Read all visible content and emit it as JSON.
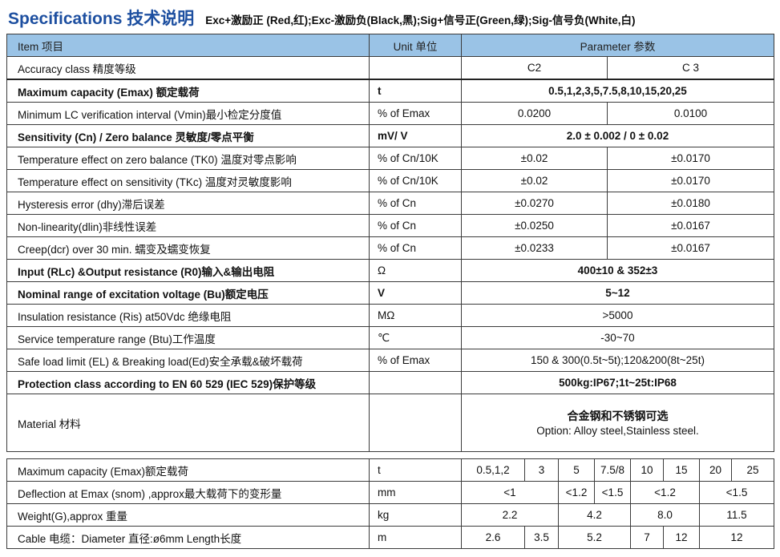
{
  "header": {
    "title": "Specifications 技术说明",
    "wiring_note": "Exc+激励正 (Red,红);Exc-激励负(Black,黑);Sig+信号正(Green,绿);Sig-信号负(White,白)"
  },
  "colors": {
    "accent_blue": "#1d4fa0",
    "table_header_bg": "#9ac3e6",
    "border": "#3b3b3b"
  },
  "spec_table": {
    "headers": {
      "item": "Item 项目",
      "unit": "Unit 单位",
      "parameter": "Parameter 参数"
    },
    "rows": [
      {
        "label": "Accuracy class 精度等级",
        "unit": "",
        "values": [
          "C2",
          "C 3"
        ]
      },
      {
        "label": "Maximum  capacity (Emax) 额定载荷",
        "unit": "t",
        "span": "0.5,1,2,3,5,7.5,8,10,15,20,25",
        "bold": true,
        "thick_top": true
      },
      {
        "label": "Minimum LC verification interval (Vmin)最小检定分度值",
        "unit": "% of Emax",
        "values": [
          "0.0200",
          "0.0100"
        ]
      },
      {
        "label": "Sensitivity (Cn) / Zero balance 灵敏度/零点平衡",
        "unit": "mV/ V",
        "span": "2.0 ± 0.002 / 0 ± 0.02",
        "bold": true
      },
      {
        "label": "Temperature effect on zero balance  (TK0) 温度对零点影响",
        "unit": "% of Cn/10K",
        "values": [
          "±0.02",
          "±0.0170"
        ]
      },
      {
        "label": "Temperature effect on sensitivity (TKc) 温度对灵敏度影响",
        "unit": "% of Cn/10K",
        "values": [
          "±0.02",
          "±0.0170"
        ]
      },
      {
        "label": "Hysteresis error (dhy)滞后误差",
        "unit": "% of Cn",
        "values": [
          "±0.0270",
          "±0.0180"
        ]
      },
      {
        "label": "Non-linearity(dlin)非线性误差",
        "unit": "% of Cn",
        "values": [
          "±0.0250",
          "±0.0167"
        ]
      },
      {
        "label": "Creep(dcr) over 30 min. 蠕变及蠕变恢复",
        "unit": "% of Cn",
        "values": [
          "±0.0233",
          "±0.0167"
        ]
      },
      {
        "label": "Input  (RLc) &Output resistance (R0)输入&输出电阻",
        "unit": "Ω",
        "span": "400±10 & 352±3",
        "bold": true,
        "unit_bold": false
      },
      {
        "label": "Nominal range of excitation voltage  (Bu)额定电压",
        "unit": "V",
        "span": "5~12",
        "bold": true
      },
      {
        "label": "Insulation  resistance (Ris) at50Vdc 绝缘电阻",
        "unit": "MΩ",
        "span": ">5000",
        "unit_bold": false
      },
      {
        "label": "Service temperature range  (Btu)工作温度",
        "unit": "℃",
        "span": "-30~70"
      },
      {
        "label": "Safe load limit (EL) & Breaking load(Ed)安全承载&破坏载荷",
        "unit": "% of Emax",
        "span": "150 & 300(0.5t~5t);120&200(8t~25t)"
      },
      {
        "label": "Protection class according to EN 60 529  (IEC 529)保护等级",
        "unit": "",
        "span": "500kg:IP67;1t~25t:IP68",
        "bold": true
      },
      {
        "label": "Material 材料",
        "unit": "",
        "span_lines": [
          "合金钢和不锈钢可选",
          "Option: Alloy steel,Stainless steel."
        ],
        "tall": true
      }
    ]
  },
  "capacity_table": {
    "rows": [
      {
        "label": "Maximum  capacity (Emax)额定载荷",
        "unit": "t",
        "cells": [
          {
            "text": "0.5,1,2",
            "colspan": 1
          },
          {
            "text": "3",
            "colspan": 1
          },
          {
            "text": "5",
            "colspan": 1
          },
          {
            "text": "7.5/8",
            "colspan": 1
          },
          {
            "text": "10",
            "colspan": 1
          },
          {
            "text": "15",
            "colspan": 1
          },
          {
            "text": "20",
            "colspan": 1
          },
          {
            "text": "25",
            "colspan": 1
          }
        ]
      },
      {
        "label": "Deflection at  Emax (snom) ,approx最大载荷下的变形量",
        "unit": "mm",
        "cells": [
          {
            "text": "<1",
            "colspan": 2
          },
          {
            "text": "<1.2",
            "colspan": 1
          },
          {
            "text": "<1.5",
            "colspan": 1
          },
          {
            "text": "<1.2",
            "colspan": 2
          },
          {
            "text": "<1.5",
            "colspan": 2
          }
        ]
      },
      {
        "label": "Weight(G),approx 重量",
        "unit": "kg",
        "cells": [
          {
            "text": "2.2",
            "colspan": 2
          },
          {
            "text": "4.2",
            "colspan": 2
          },
          {
            "text": "8.0",
            "colspan": 2
          },
          {
            "text": "11.5",
            "colspan": 2
          }
        ]
      },
      {
        "label": "Cable 电缆：Diameter 直径:ø6mm Length长度",
        "unit": "m",
        "cells": [
          {
            "text": "2.6",
            "colspan": 1
          },
          {
            "text": "3.5",
            "colspan": 1
          },
          {
            "text": "5.2",
            "colspan": 2
          },
          {
            "text": "7",
            "colspan": 1
          },
          {
            "text": "12",
            "colspan": 1
          },
          {
            "text": "12",
            "colspan": 2
          }
        ]
      }
    ]
  }
}
